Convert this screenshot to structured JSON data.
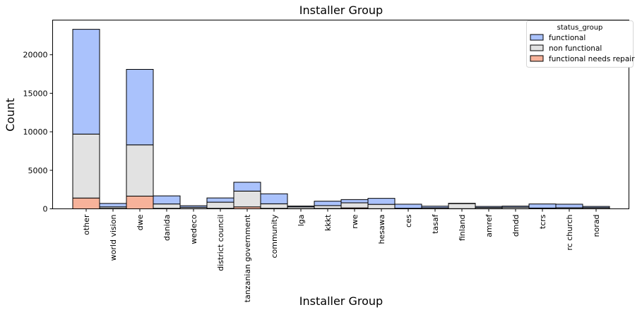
{
  "chart_data": {
    "type": "bar",
    "stacked": true,
    "title": "Installer Group",
    "xlabel": "Installer Group",
    "ylabel": "Count",
    "ylim": [
      0,
      24500
    ],
    "yticks": [
      0,
      5000,
      10000,
      15000,
      20000
    ],
    "grid": false,
    "legend": {
      "title": "status_group",
      "placement": "top-right",
      "entries": [
        "functional",
        "non functional",
        "functional needs repair"
      ]
    },
    "colors": {
      "functional": "#aac2fc",
      "non functional": "#e2e2e2",
      "functional needs repair": "#f7b29a",
      "edge": "#000000"
    },
    "categories": [
      "other",
      "world vision",
      "dwe",
      "danida",
      "wedeco",
      "district council",
      "tanzanian government",
      "community",
      "lga",
      "kkkt",
      "rwe",
      "hesawa",
      "ces",
      "tasaf",
      "finland",
      "amref",
      "dmdd",
      "tcrs",
      "rc church",
      "norad"
    ],
    "series": [
      {
        "name": "functional needs repair",
        "values": [
          1400,
          50,
          1650,
          60,
          20,
          60,
          250,
          60,
          20,
          40,
          120,
          20,
          20,
          20,
          20,
          20,
          10,
          20,
          20,
          20
        ]
      },
      {
        "name": "non functional",
        "values": [
          8300,
          200,
          6650,
          570,
          180,
          800,
          2050,
          590,
          230,
          380,
          660,
          560,
          50,
          120,
          660,
          150,
          200,
          80,
          120,
          140
        ]
      },
      {
        "name": "functional",
        "values": [
          13600,
          450,
          9800,
          1050,
          200,
          550,
          1150,
          1300,
          110,
          570,
          420,
          780,
          530,
          200,
          40,
          140,
          140,
          530,
          460,
          150
        ]
      }
    ]
  }
}
